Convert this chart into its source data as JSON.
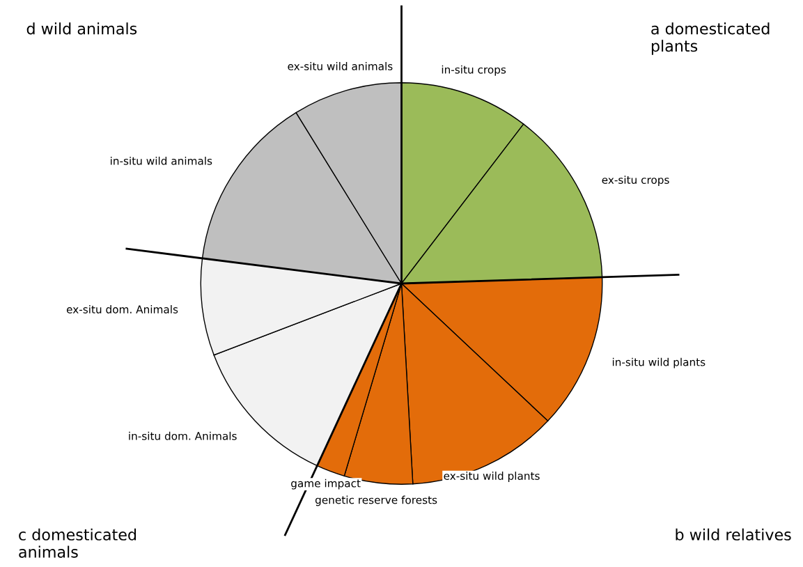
{
  "chart_data": {
    "type": "pie",
    "categories": [
      "in-situ crops",
      "ex-situ crops",
      "in-situ wild plants",
      "ex-situ wild plants",
      "genetic reserve forests",
      "game impact",
      "in-situ dom. Animals",
      "ex-situ dom. Animals",
      "in-situ wild animals",
      "ex-situ wild animals"
    ],
    "values": [
      10.4,
      14.1,
      12.5,
      12.1,
      5.5,
      2.3,
      12.3,
      7.8,
      14.2,
      8.8
    ],
    "colors": [
      "#9bbb59",
      "#9bbb59",
      "#e36c0a",
      "#e36c0a",
      "#e36c0a",
      "#e36c0a",
      "#f2f2f2",
      "#f2f2f2",
      "#bfbfbf",
      "#bfbfbf"
    ],
    "annotations": [
      "a domesticated\nplants",
      "b wild relatives",
      "c domesticated\nanimals",
      "d wild animals"
    ]
  }
}
